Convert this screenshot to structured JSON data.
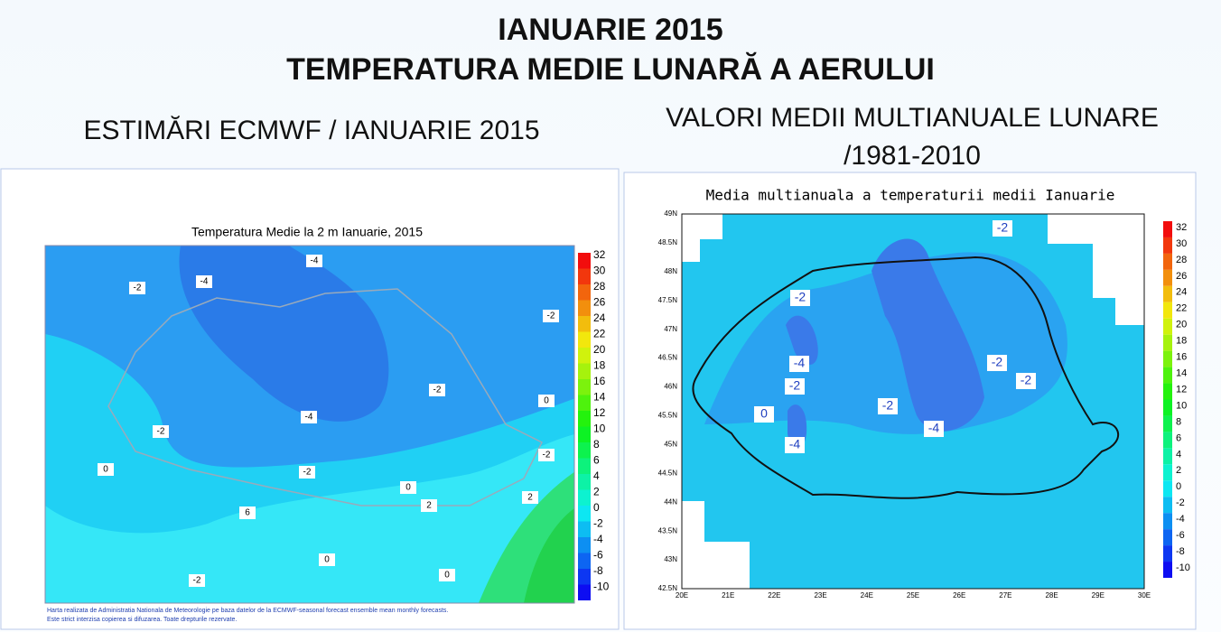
{
  "header": {
    "title_line1": "IANUARIE 2015",
    "title_line2": "TEMPERATURA MEDIE LUNARĂ A AERULUI"
  },
  "left": {
    "heading": "ESTIMĂRI ECMWF / IANUARIE 2015",
    "map_title": "Temperatura Medie la 2 m Ianuarie, 2015",
    "colorbar": [
      32,
      30,
      28,
      26,
      24,
      22,
      20,
      18,
      16,
      14,
      12,
      10,
      8,
      6,
      4,
      2,
      0,
      -2,
      -4,
      -6,
      -8,
      -10
    ],
    "contour_labels": [
      "-4",
      "-4",
      "-2",
      "-2",
      "-2",
      "-2",
      "-4",
      "0",
      "-2",
      "0",
      "-2",
      "0",
      "2",
      "6",
      "0",
      "0",
      "-2",
      "2"
    ],
    "footnote": [
      "Harta realizata de Administratia Nationala de Meteorologie pe baza datelor de la ECMWF-seasonal forecast ensemble mean monthly forecasts.",
      "Este strict interzisa copierea si difuzarea. Toate drepturile rezervate."
    ]
  },
  "right": {
    "heading_line1": "VALORI MEDII MULTIANUALE LUNARE",
    "heading_line2": "/1981-2010",
    "map_title": "Media multianuala a temperaturii medii Ianuarie",
    "lat_labels": [
      "49N",
      "48.5N",
      "48N",
      "47.5N",
      "47N",
      "46.5N",
      "46N",
      "45.5N",
      "45N",
      "44.5N",
      "44N",
      "43.5N",
      "43N",
      "42.5N"
    ],
    "lon_labels": [
      "20E",
      "21E",
      "22E",
      "23E",
      "24E",
      "25E",
      "26E",
      "27E",
      "28E",
      "29E",
      "30E"
    ],
    "colorbar": [
      32,
      30,
      28,
      26,
      24,
      22,
      20,
      18,
      16,
      14,
      12,
      10,
      8,
      6,
      4,
      2,
      0,
      -2,
      -4,
      -6,
      -8,
      -10
    ],
    "contour_labels": [
      "-2",
      "-2",
      "-4",
      "-2",
      "0",
      "-4",
      "-2",
      "-4",
      "-2",
      "-2"
    ]
  }
}
